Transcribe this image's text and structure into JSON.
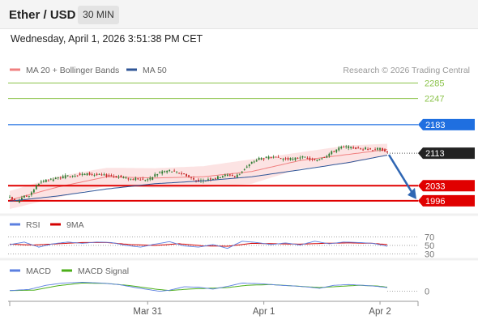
{
  "header": {
    "title": "Ether / USD",
    "timeframe_label": "30 MIN",
    "datetime": "Wednesday, April 1, 2026 3:51:38 PM CET"
  },
  "colors": {
    "bollinger": "#f08080",
    "ma50": "#2f5597",
    "bull": "#2e7d32",
    "bear": "#c62828",
    "resistance": "#8bc34a",
    "pivot": "#1f6fe0",
    "support": "#e00000",
    "current": "#222222",
    "rsi": "#5b7fe0",
    "rsi_ma": "#d40000",
    "macd": "#5b7fe0",
    "macd_signal": "#4caf1a",
    "arrow": "#2f66b3"
  },
  "chart_data": [
    {
      "type": "candlestick",
      "legend": [
        {
          "label": "MA 20 + Bollinger Bands",
          "color": "#f08080"
        },
        {
          "label": "MA 50",
          "color": "#2f5597"
        }
      ],
      "watermark": "Research © 2026 Trading Central",
      "ylim": [
        1968,
        2300
      ],
      "levels": [
        {
          "label": "2285",
          "value": 2285,
          "kind": "resistance"
        },
        {
          "label": "2247",
          "value": 2247,
          "kind": "resistance"
        },
        {
          "label": "2183",
          "value": 2183,
          "kind": "pivot"
        },
        {
          "label": "2113",
          "value": 2113,
          "kind": "current"
        },
        {
          "label": "2033",
          "value": 2033,
          "kind": "support"
        },
        {
          "label": "1996",
          "value": 1996,
          "kind": "support"
        }
      ],
      "close_keypoints": [
        [
          0,
          2003
        ],
        [
          3,
          1994
        ],
        [
          5,
          2005
        ],
        [
          8,
          2010
        ],
        [
          12,
          2040
        ],
        [
          15,
          2045
        ],
        [
          20,
          2052
        ],
        [
          25,
          2058
        ],
        [
          28,
          2060
        ],
        [
          32,
          2062
        ],
        [
          35,
          2060
        ],
        [
          40,
          2058
        ],
        [
          45,
          2055
        ],
        [
          50,
          2050
        ],
        [
          55,
          2048
        ],
        [
          58,
          2050
        ],
        [
          60,
          2060
        ],
        [
          63,
          2068
        ],
        [
          66,
          2070
        ],
        [
          70,
          2065
        ],
        [
          72,
          2062
        ],
        [
          75,
          2052
        ],
        [
          78,
          2042
        ],
        [
          80,
          2045
        ],
        [
          82,
          2050
        ],
        [
          85,
          2052
        ],
        [
          88,
          2058
        ],
        [
          91,
          2060
        ],
        [
          93,
          2055
        ],
        [
          95,
          2063
        ],
        [
          97,
          2075
        ],
        [
          100,
          2090
        ],
        [
          103,
          2100
        ],
        [
          107,
          2102
        ],
        [
          112,
          2100
        ],
        [
          117,
          2098
        ],
        [
          120,
          2104
        ],
        [
          123,
          2100
        ],
        [
          126,
          2095
        ],
        [
          130,
          2105
        ],
        [
          133,
          2115
        ],
        [
          136,
          2126
        ],
        [
          139,
          2128
        ],
        [
          143,
          2125
        ],
        [
          147,
          2124
        ],
        [
          150,
          2122
        ],
        [
          153,
          2124
        ],
        [
          155,
          2120
        ],
        [
          156,
          2113
        ]
      ],
      "candle_count": 157,
      "ma20_keypoints": [
        [
          0,
          1998
        ],
        [
          20,
          2030
        ],
        [
          40,
          2055
        ],
        [
          60,
          2052
        ],
        [
          80,
          2055
        ],
        [
          100,
          2068
        ],
        [
          120,
          2095
        ],
        [
          140,
          2110
        ],
        [
          156,
          2122
        ]
      ],
      "band_halfwidth_keypoints": [
        [
          0,
          22
        ],
        [
          20,
          26
        ],
        [
          40,
          22
        ],
        [
          60,
          24
        ],
        [
          80,
          26
        ],
        [
          100,
          30
        ],
        [
          120,
          20
        ],
        [
          140,
          22
        ],
        [
          156,
          14
        ]
      ],
      "ma50_keypoints": [
        [
          0,
          1995
        ],
        [
          20,
          2008
        ],
        [
          40,
          2025
        ],
        [
          60,
          2038
        ],
        [
          80,
          2045
        ],
        [
          100,
          2055
        ],
        [
          120,
          2072
        ],
        [
          140,
          2090
        ],
        [
          156,
          2108
        ]
      ],
      "forecast_arrow": {
        "from": 2113,
        "to": 1996
      }
    },
    {
      "type": "line",
      "legend": [
        {
          "label": "RSI",
          "color": "#5b7fe0"
        },
        {
          "label": "9MA",
          "color": "#d40000"
        }
      ],
      "ylim": [
        25,
        75
      ],
      "ticks": [
        "70",
        "50",
        "30"
      ],
      "tick_values": [
        70,
        50,
        30
      ],
      "rsi_keypoints": [
        [
          0,
          52
        ],
        [
          6,
          58
        ],
        [
          12,
          46
        ],
        [
          18,
          54
        ],
        [
          24,
          58
        ],
        [
          30,
          55
        ],
        [
          36,
          58
        ],
        [
          42,
          57
        ],
        [
          48,
          50
        ],
        [
          54,
          46
        ],
        [
          60,
          53
        ],
        [
          66,
          59
        ],
        [
          72,
          49
        ],
        [
          78,
          46
        ],
        [
          84,
          52
        ],
        [
          90,
          43
        ],
        [
          96,
          60
        ],
        [
          102,
          57
        ],
        [
          108,
          52
        ],
        [
          114,
          56
        ],
        [
          120,
          51
        ],
        [
          126,
          60
        ],
        [
          132,
          54
        ],
        [
          138,
          58
        ],
        [
          144,
          57
        ],
        [
          150,
          55
        ],
        [
          156,
          48
        ]
      ],
      "rsi_ma_keypoints": [
        [
          0,
          53
        ],
        [
          10,
          51
        ],
        [
          20,
          54
        ],
        [
          30,
          57
        ],
        [
          40,
          57
        ],
        [
          50,
          52
        ],
        [
          60,
          50
        ],
        [
          70,
          54
        ],
        [
          80,
          49
        ],
        [
          90,
          48
        ],
        [
          100,
          55
        ],
        [
          110,
          54
        ],
        [
          120,
          53
        ],
        [
          130,
          55
        ],
        [
          140,
          56
        ],
        [
          150,
          55
        ],
        [
          156,
          52
        ]
      ]
    },
    {
      "type": "line",
      "legend": [
        {
          "label": "MACD",
          "color": "#5b7fe0"
        },
        {
          "label": "MACD Signal",
          "color": "#4caf1a"
        }
      ],
      "ylim": [
        -18,
        38
      ],
      "ticks": [
        "0"
      ],
      "tick_values": [
        0
      ],
      "macd_keypoints": [
        [
          0,
          2
        ],
        [
          8,
          5
        ],
        [
          15,
          16
        ],
        [
          22,
          22
        ],
        [
          30,
          24
        ],
        [
          38,
          22
        ],
        [
          45,
          18
        ],
        [
          52,
          10
        ],
        [
          58,
          4
        ],
        [
          62,
          0
        ],
        [
          66,
          3
        ],
        [
          72,
          12
        ],
        [
          78,
          11
        ],
        [
          84,
          6
        ],
        [
          90,
          13
        ],
        [
          96,
          22
        ],
        [
          104,
          20
        ],
        [
          112,
          16
        ],
        [
          118,
          14
        ],
        [
          124,
          11
        ],
        [
          128,
          8
        ],
        [
          134,
          16
        ],
        [
          140,
          18
        ],
        [
          146,
          16
        ],
        [
          152,
          13
        ],
        [
          156,
          10
        ]
      ],
      "signal_keypoints": [
        [
          0,
          2
        ],
        [
          10,
          3
        ],
        [
          20,
          15
        ],
        [
          30,
          22
        ],
        [
          40,
          21
        ],
        [
          50,
          15
        ],
        [
          60,
          6
        ],
        [
          66,
          2
        ],
        [
          74,
          6
        ],
        [
          82,
          8
        ],
        [
          90,
          10
        ],
        [
          98,
          16
        ],
        [
          108,
          18
        ],
        [
          118,
          14
        ],
        [
          128,
          10
        ],
        [
          136,
          13
        ],
        [
          144,
          16
        ],
        [
          152,
          14
        ],
        [
          156,
          11
        ]
      ]
    }
  ],
  "x_axis": {
    "labels": [
      {
        "text": "Mar 31",
        "index": 57
      },
      {
        "text": "Apr 1",
        "index": 105
      },
      {
        "text": "Apr 2",
        "index": 153
      }
    ]
  }
}
